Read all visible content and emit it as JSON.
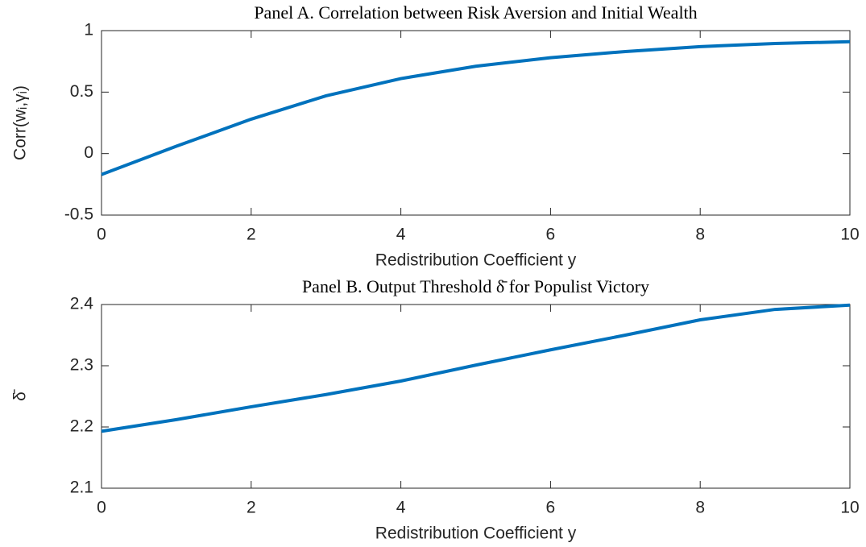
{
  "chart_data": [
    {
      "type": "line",
      "title": "Panel A. Correlation between Risk Aversion and Initial Wealth",
      "xlabel": "Redistribution Coefficient y",
      "ylabel": "Corr(wᵢ,γᵢ)",
      "x": [
        0,
        1,
        2,
        3,
        4,
        5,
        6,
        7,
        8,
        9,
        10
      ],
      "series": [
        {
          "color": "#0072bd",
          "values": [
            -0.17,
            0.06,
            0.28,
            0.47,
            0.61,
            0.71,
            0.78,
            0.83,
            0.87,
            0.895,
            0.91
          ]
        }
      ],
      "xlim": [
        0,
        10
      ],
      "xticks": [
        0,
        2,
        4,
        6,
        8,
        10
      ],
      "ylim": [
        -0.5,
        1
      ],
      "yticks": [
        -0.5,
        0,
        0.5,
        1
      ]
    },
    {
      "type": "line",
      "title": "Panel B. Output Threshold δ̄ for Populist Victory",
      "xlabel": "Redistribution Coefficient y",
      "ylabel": "δ̄",
      "x": [
        0,
        1,
        2,
        3,
        4,
        5,
        6,
        7,
        8,
        9,
        10
      ],
      "series": [
        {
          "color": "#0072bd",
          "values": [
            2.193,
            2.212,
            2.233,
            2.253,
            2.275,
            2.301,
            2.326,
            2.35,
            2.375,
            2.392,
            2.399
          ]
        }
      ],
      "xlim": [
        0,
        10
      ],
      "xticks": [
        0,
        2,
        4,
        6,
        8,
        10
      ],
      "ylim": [
        2.1,
        2.4
      ],
      "yticks": [
        2.1,
        2.2,
        2.3,
        2.4
      ]
    }
  ]
}
